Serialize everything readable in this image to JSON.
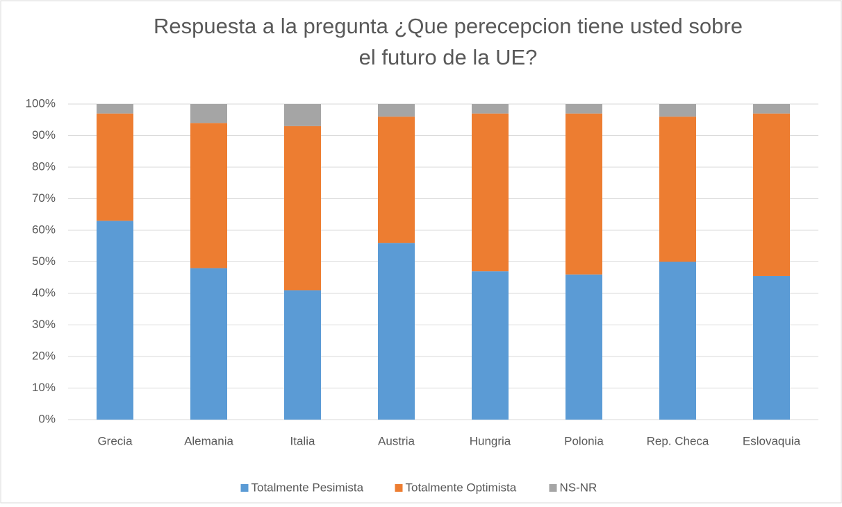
{
  "chart_data": {
    "type": "stacked_bar",
    "title": [
      "Respuesta a la pregunta ¿Que perecepcion tiene usted sobre",
      "el futuro de la UE?"
    ],
    "categories": [
      "Grecia",
      "Alemania",
      "Italia",
      "Austria",
      "Hungria",
      "Polonia",
      "Rep. Checa",
      "Eslovaquia"
    ],
    "series": [
      {
        "name": "Totalmente Pesimista",
        "color": "#5b9bd5",
        "values": [
          63,
          48,
          41,
          56,
          47,
          46,
          50,
          45.5
        ]
      },
      {
        "name": "Totalmente Optimista",
        "color": "#ed7d31",
        "values": [
          34,
          46,
          52,
          40,
          50,
          51,
          46,
          51.5
        ]
      },
      {
        "name": "NS-NR",
        "color": "#a5a5a5",
        "values": [
          3,
          6,
          7,
          4,
          3,
          3,
          4,
          3
        ]
      }
    ],
    "ylim": [
      0,
      100
    ],
    "yticks": [
      {
        "value": 0,
        "label": "0%"
      },
      {
        "value": 10,
        "label": "10%"
      },
      {
        "value": 20,
        "label": "20%"
      },
      {
        "value": 30,
        "label": "30%"
      },
      {
        "value": 40,
        "label": "40%"
      },
      {
        "value": 50,
        "label": "50%"
      },
      {
        "value": 60,
        "label": "60%"
      },
      {
        "value": 70,
        "label": "70%"
      },
      {
        "value": 80,
        "label": "80%"
      },
      {
        "value": 90,
        "label": "90%"
      },
      {
        "value": 100,
        "label": "100%"
      }
    ],
    "grid": true,
    "legend": "bottom"
  }
}
